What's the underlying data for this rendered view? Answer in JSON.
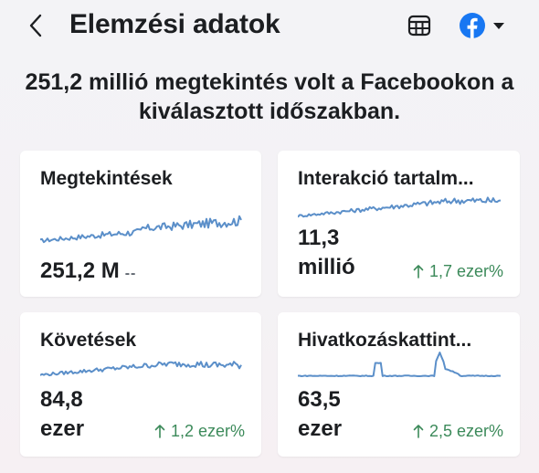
{
  "header": {
    "title": "Elemzési adatok",
    "back_icon": "chevron-left-icon",
    "calendar_icon": "calendar-grid-icon",
    "platform_icon": "facebook-icon",
    "platform_caret_icon": "caret-down-icon",
    "brand_color": "#1877f2"
  },
  "summary": "251,2 millió megtekintés volt a Facebookon a kiválasztott időszakban.",
  "colors": {
    "sparkline": "#5b8fc9",
    "positive": "#3c8a5a"
  },
  "cards": [
    {
      "title": "Megtekintések",
      "value": "251,2 M",
      "delta": "--",
      "change": ""
    },
    {
      "title": "Interakció tartalm...",
      "value_line1": "11,3",
      "value_line2": "millió",
      "change": "1,7 ezer%",
      "change_icon": "arrow-up-icon"
    },
    {
      "title": "Követések",
      "value_line1": "84,8",
      "value_line2": "ezer",
      "change": "1,2 ezer%",
      "change_icon": "arrow-up-icon"
    },
    {
      "title": "Hivatkozáskattint...",
      "value_line1": "63,5",
      "value_line2": "ezer",
      "change": "2,5 ezer%",
      "change_icon": "arrow-up-icon"
    }
  ]
}
